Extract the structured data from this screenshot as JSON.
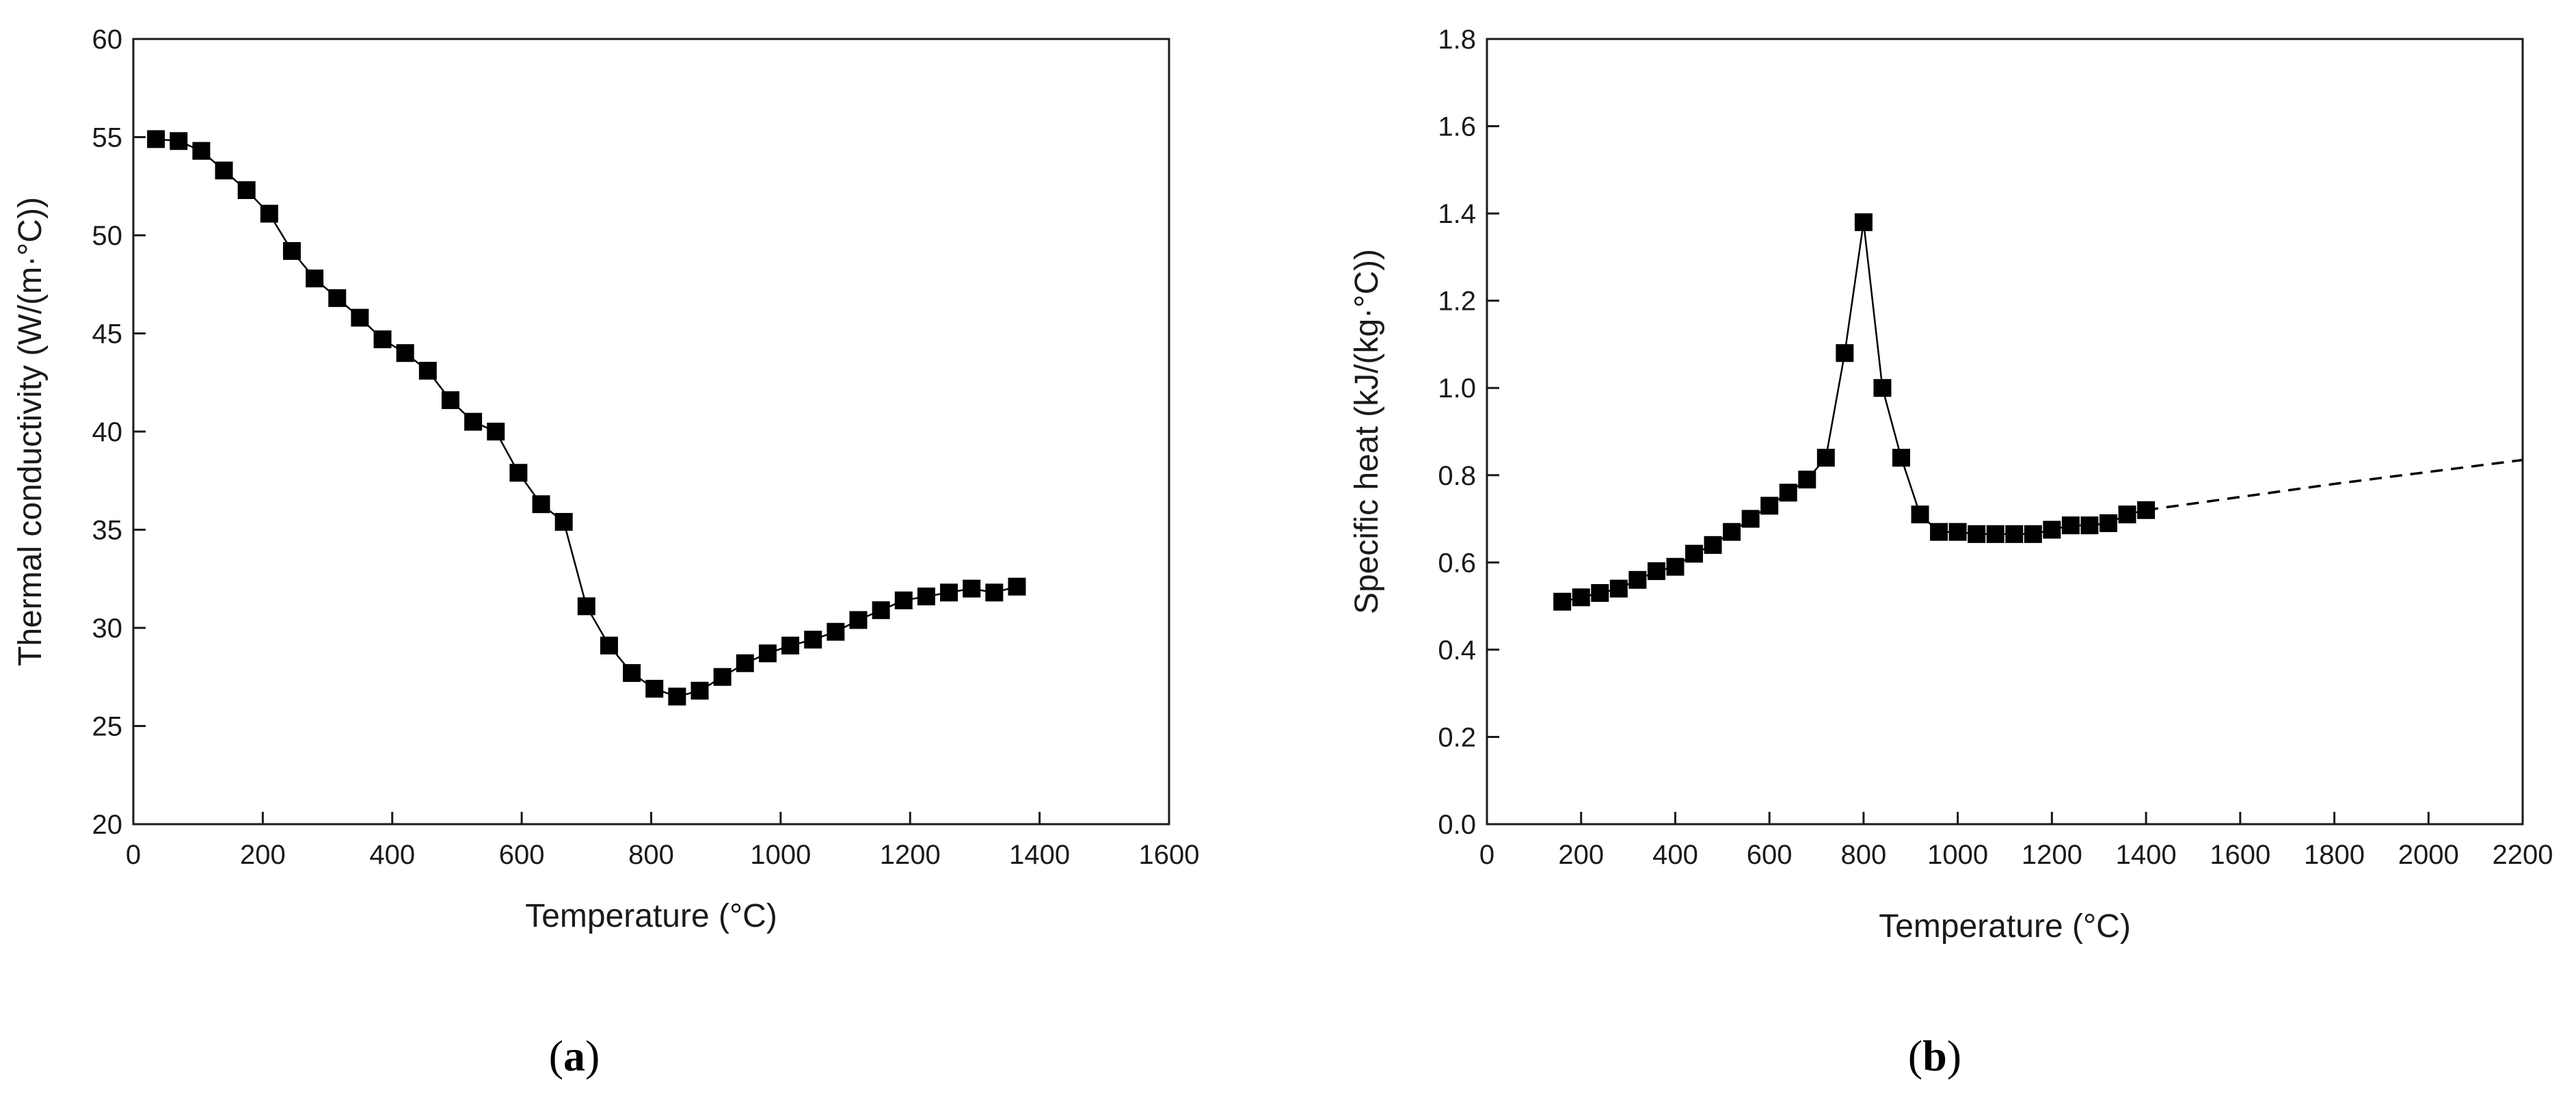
{
  "chart_data": [
    {
      "type": "scatter",
      "caption": "(a)",
      "caption_letter": "a",
      "xlabel": "Temperature (°C)",
      "ylabel": "Thermal conductivity (W/(m·°C))",
      "xlim": [
        0,
        1600
      ],
      "ylim": [
        20,
        60
      ],
      "xticks": [
        0,
        200,
        400,
        600,
        800,
        1000,
        1200,
        1400,
        1600
      ],
      "yticks": [
        20,
        25,
        30,
        35,
        40,
        45,
        50,
        55,
        60
      ],
      "grid": false,
      "series": [
        {
          "connected": true,
          "marker": "square",
          "points": [
            [
              35,
              54.9
            ],
            [
              70,
              54.8
            ],
            [
              105,
              54.3
            ],
            [
              140,
              53.3
            ],
            [
              175,
              52.3
            ],
            [
              210,
              51.1
            ],
            [
              245,
              49.2
            ],
            [
              280,
              47.8
            ],
            [
              315,
              46.8
            ],
            [
              350,
              45.8
            ],
            [
              385,
              44.7
            ],
            [
              420,
              44.0
            ],
            [
              455,
              43.1
            ],
            [
              490,
              41.6
            ],
            [
              525,
              40.5
            ],
            [
              560,
              40.0
            ],
            [
              595,
              37.9
            ],
            [
              630,
              36.3
            ],
            [
              665,
              35.4
            ],
            [
              700,
              31.1
            ],
            [
              735,
              29.1
            ],
            [
              770,
              27.7
            ],
            [
              805,
              26.9
            ],
            [
              840,
              26.5
            ],
            [
              875,
              26.8
            ],
            [
              910,
              27.5
            ],
            [
              945,
              28.2
            ],
            [
              980,
              28.7
            ],
            [
              1015,
              29.1
            ],
            [
              1050,
              29.4
            ],
            [
              1085,
              29.8
            ],
            [
              1120,
              30.4
            ],
            [
              1155,
              30.9
            ],
            [
              1190,
              31.4
            ],
            [
              1225,
              31.6
            ],
            [
              1260,
              31.8
            ],
            [
              1295,
              32.0
            ],
            [
              1330,
              31.8
            ],
            [
              1365,
              32.1
            ]
          ]
        }
      ],
      "colors": {
        "marker": "#000000",
        "line": "#000000",
        "axis": "#1a1a1a"
      }
    },
    {
      "type": "scatter",
      "caption": "(b)",
      "caption_letter": "b",
      "xlabel": "Temperature (°C)",
      "ylabel": "Specific heat (kJ/(kg·°C))",
      "xlim": [
        0,
        2200
      ],
      "ylim": [
        0,
        1.8
      ],
      "xticks": [
        0,
        200,
        400,
        600,
        800,
        1000,
        1200,
        1400,
        1600,
        1800,
        2000,
        2200
      ],
      "yticks": [
        0.0,
        0.2,
        0.4,
        0.6,
        0.8,
        1.0,
        1.2,
        1.4,
        1.6,
        1.8
      ],
      "grid": false,
      "series": [
        {
          "connected": true,
          "marker": "square",
          "points": [
            [
              160,
              0.51
            ],
            [
              200,
              0.52
            ],
            [
              240,
              0.53
            ],
            [
              280,
              0.54
            ],
            [
              320,
              0.56
            ],
            [
              360,
              0.58
            ],
            [
              400,
              0.59
            ],
            [
              440,
              0.62
            ],
            [
              480,
              0.64
            ],
            [
              520,
              0.67
            ],
            [
              560,
              0.7
            ],
            [
              600,
              0.73
            ],
            [
              640,
              0.76
            ],
            [
              680,
              0.79
            ],
            [
              720,
              0.84
            ],
            [
              760,
              1.08
            ],
            [
              800,
              1.38
            ],
            [
              840,
              1.0
            ],
            [
              880,
              0.84
            ],
            [
              920,
              0.71
            ],
            [
              960,
              0.67
            ],
            [
              1000,
              0.67
            ],
            [
              1040,
              0.665
            ],
            [
              1080,
              0.665
            ],
            [
              1120,
              0.665
            ],
            [
              1160,
              0.665
            ],
            [
              1200,
              0.675
            ],
            [
              1240,
              0.685
            ],
            [
              1280,
              0.685
            ],
            [
              1320,
              0.69
            ],
            [
              1360,
              0.71
            ],
            [
              1400,
              0.72
            ]
          ]
        },
        {
          "connected": true,
          "marker": "none",
          "dashed": true,
          "points": [
            [
              1400,
              0.72
            ],
            [
              1800,
              0.78
            ],
            [
              2200,
              0.835
            ]
          ]
        }
      ],
      "colors": {
        "marker": "#000000",
        "line": "#000000",
        "axis": "#1a1a1a"
      }
    }
  ]
}
